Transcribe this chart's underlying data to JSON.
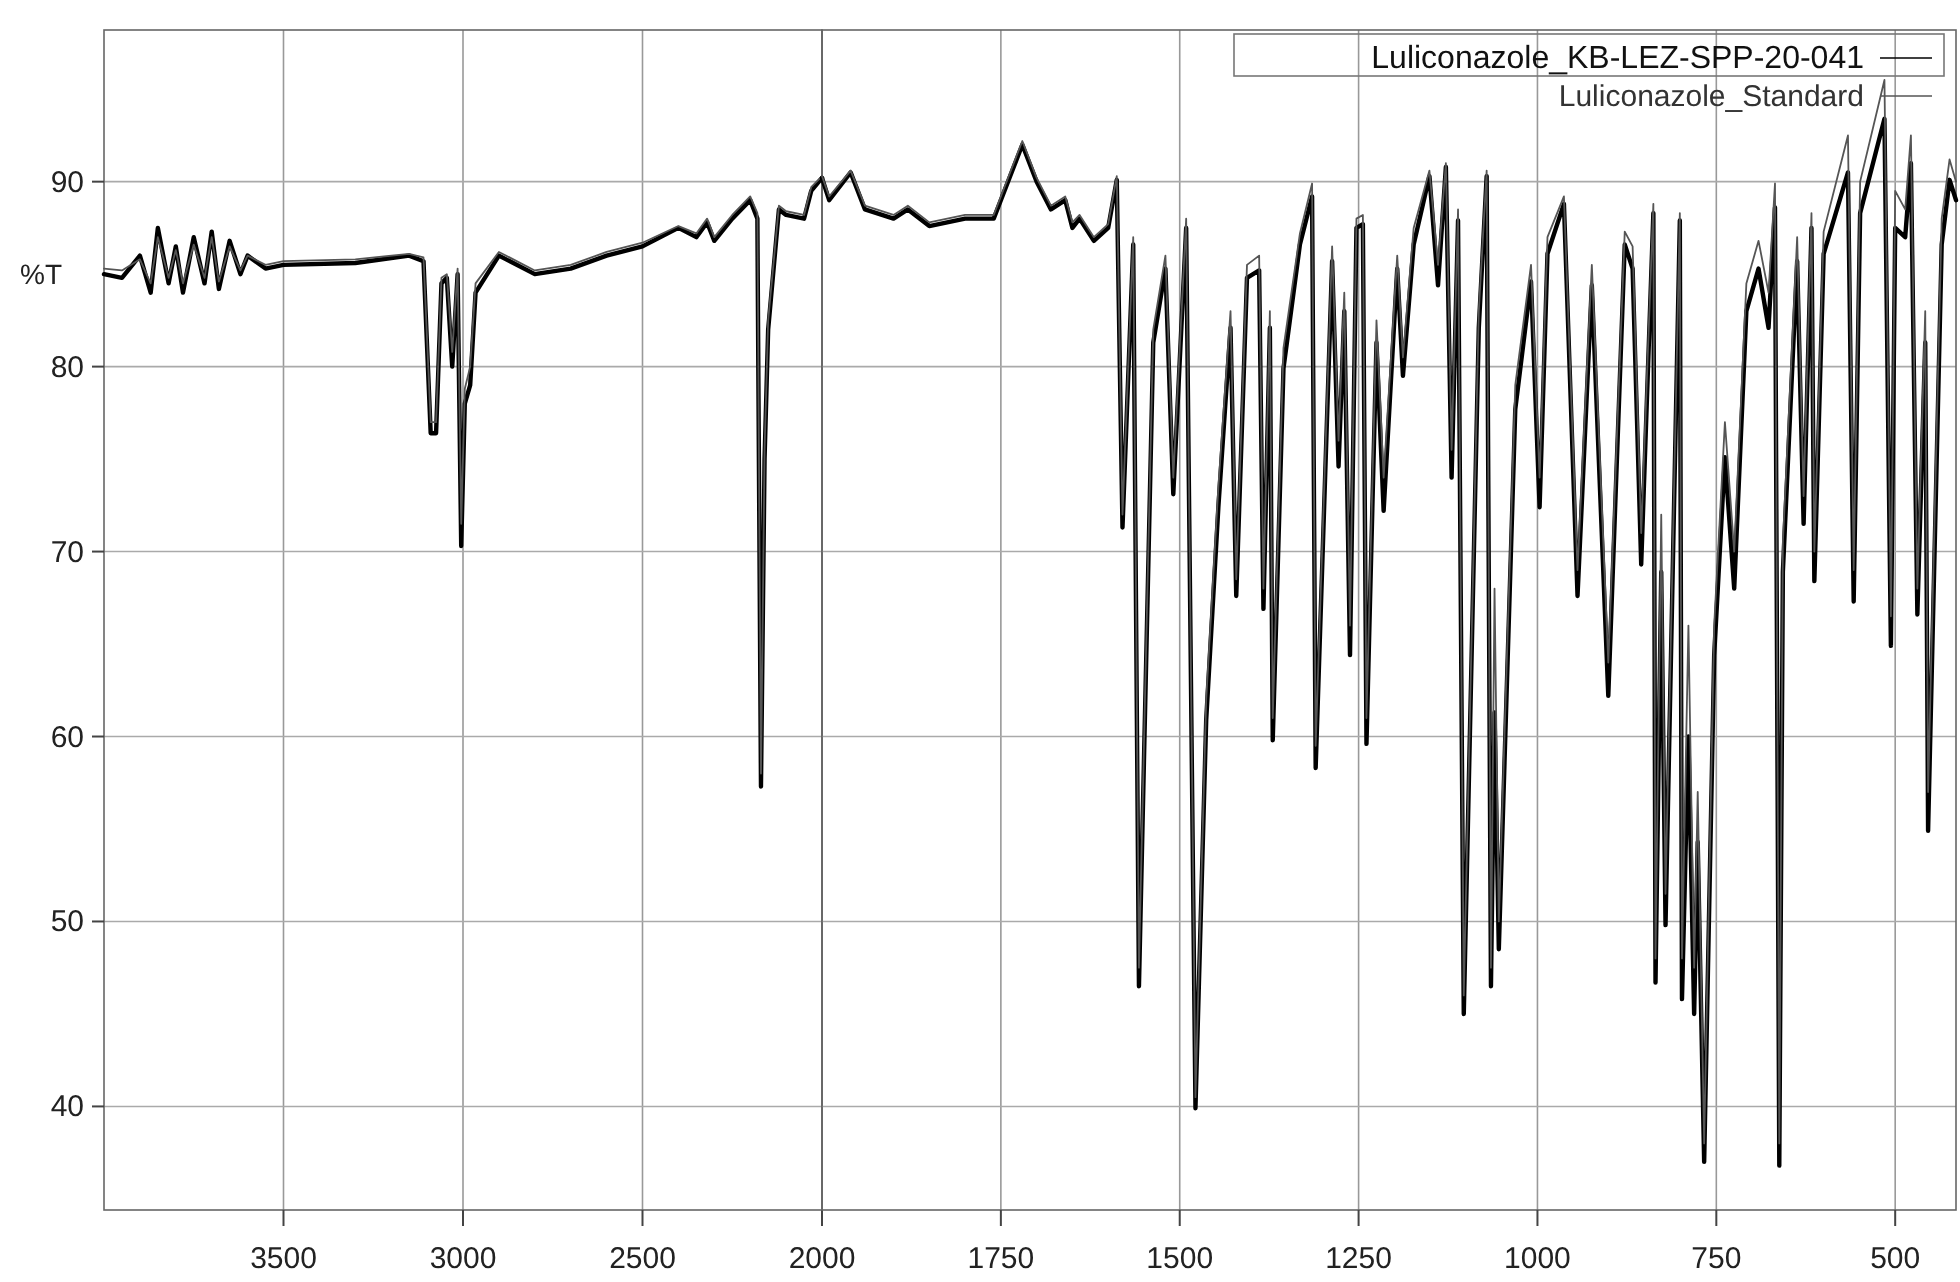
{
  "chart_data": [
    {
      "type": "line",
      "ylabel": "%T",
      "xlim": [
        4000,
        2000
      ],
      "xticks": [
        3500,
        3000,
        2500,
        2000
      ],
      "ylim": [
        34.4,
        98.2
      ],
      "yticks": [
        40,
        50,
        60,
        70,
        80,
        90
      ],
      "grid": true,
      "marker": "none",
      "line_style": "solid",
      "x": [
        4000,
        3950,
        3900,
        3870,
        3850,
        3820,
        3800,
        3780,
        3750,
        3720,
        3700,
        3680,
        3650,
        3620,
        3600,
        3550,
        3500,
        3300,
        3150,
        3110,
        3090,
        3075,
        3060,
        3045,
        3030,
        3015,
        3005,
        2995,
        2980,
        2965,
        2900,
        2800,
        2700,
        2600,
        2500,
        2400,
        2350,
        2320,
        2300,
        2250,
        2200,
        2180,
        2170,
        2160,
        2150,
        2120,
        2100,
        2050,
        2030,
        2000
      ],
      "series": [
        {
          "color": "#000000",
          "values": [
            85,
            84.8,
            86,
            84,
            87.5,
            84.5,
            86.5,
            84,
            87,
            84.5,
            87.3,
            84.2,
            86.8,
            85,
            86,
            85.3,
            85.5,
            85.6,
            86,
            85.7,
            76.4,
            76.4,
            84.5,
            84.8,
            80,
            85,
            70.3,
            78,
            79,
            84,
            86,
            85,
            85.3,
            86,
            86.5,
            87.5,
            87,
            87.8,
            86.8,
            88,
            89,
            88,
            57.3,
            75,
            82,
            88.5,
            88.2,
            88,
            89.5,
            90.2
          ]
        },
        {
          "color": "#555555",
          "values": [
            85.3,
            85.2,
            85.8,
            84.5,
            87,
            84.8,
            86.3,
            84.5,
            86.6,
            84.8,
            87,
            84.6,
            86.5,
            85.2,
            86,
            85.5,
            85.7,
            85.8,
            86.1,
            85.9,
            77,
            77,
            84.8,
            85,
            80.8,
            85.3,
            71.5,
            78.8,
            80,
            84.5,
            86.2,
            85.2,
            85.5,
            86.2,
            86.7,
            87.6,
            87.2,
            88,
            87,
            88.2,
            89.2,
            88.3,
            58,
            75.5,
            82.5,
            88.7,
            88.4,
            88.2,
            89.7,
            90.3
          ]
        }
      ]
    },
    {
      "type": "line",
      "xlim": [
        2000,
        415
      ],
      "xticks": [
        1750,
        1500,
        1250,
        1000,
        750,
        500
      ],
      "ylim": [
        34.4,
        98.2
      ],
      "yticks": [
        40,
        50,
        60,
        70,
        80,
        90
      ],
      "tick_labels": "x",
      "grid": true,
      "legend": "top right",
      "marker": "none",
      "line_style": "solid",
      "x": [
        2000,
        1990,
        1960,
        1940,
        1900,
        1880,
        1850,
        1800,
        1760,
        1740,
        1720,
        1700,
        1680,
        1660,
        1650,
        1640,
        1620,
        1600,
        1588,
        1580,
        1565,
        1557,
        1537,
        1520,
        1509,
        1491,
        1478,
        1463,
        1446,
        1429,
        1421,
        1406,
        1389,
        1383,
        1374,
        1370,
        1355,
        1332,
        1315,
        1310,
        1287,
        1278,
        1270,
        1262,
        1253,
        1244,
        1239,
        1225,
        1215,
        1196,
        1188,
        1173,
        1151,
        1139,
        1128,
        1120,
        1111,
        1103,
        1082,
        1071,
        1065,
        1060,
        1054,
        1031,
        1009,
        997,
        986,
        963,
        944,
        924,
        901,
        878,
        867,
        855,
        838,
        835,
        827,
        821,
        801,
        798,
        789,
        781,
        776,
        767,
        753,
        738,
        725,
        708,
        691,
        677,
        668,
        662,
        657,
        637,
        628,
        617,
        613,
        600,
        566,
        558,
        549,
        515,
        506,
        500,
        486,
        478,
        469,
        458,
        454,
        435,
        424,
        415
      ],
      "series": [
        {
          "name": "Luliconazole_KB-LEZ-SPP-20-041",
          "color": "#000000",
          "values": [
            90.2,
            89,
            90.5,
            88.5,
            88,
            88.5,
            87.6,
            88,
            88,
            90,
            92,
            90,
            88.5,
            89,
            87.5,
            88,
            86.8,
            87.5,
            90.1,
            71.3,
            86.6,
            46.5,
            81.3,
            85.3,
            73.1,
            87.5,
            39.9,
            60.9,
            72.4,
            82.1,
            67.6,
            84.8,
            85.2,
            66.9,
            82.1,
            59.8,
            79.9,
            86.6,
            89.2,
            58.3,
            85.7,
            74.6,
            83,
            64.4,
            87.5,
            87.7,
            59.6,
            81.3,
            72.2,
            85.3,
            79.5,
            86.6,
            90.3,
            84.4,
            90.8,
            74,
            87.9,
            45,
            82.1,
            90.3,
            46.5,
            61.3,
            48.5,
            77.7,
            84.6,
            72.4,
            86.1,
            88.8,
            67.6,
            84.4,
            62.2,
            86.6,
            85.3,
            69.3,
            88.3,
            46.7,
            68.9,
            49.8,
            87.9,
            45.8,
            60,
            45,
            54.3,
            37,
            64.4,
            75.1,
            68,
            83,
            85.3,
            82.1,
            88.6,
            36.8,
            68.9,
            85.7,
            71.5,
            87.5,
            68.4,
            86.1,
            90.5,
            67.3,
            88.3,
            93.4,
            64.9,
            87.5,
            87,
            91,
            66.6,
            81.3,
            54.9,
            86.6,
            90.1,
            89
          ]
        },
        {
          "name": "Luliconazole_Standard",
          "color": "#555555",
          "values": [
            90.3,
            89.2,
            90.6,
            88.7,
            88.2,
            88.7,
            87.8,
            88.2,
            88.2,
            90.2,
            92.2,
            90.2,
            88.7,
            89.2,
            87.8,
            88.2,
            87,
            87.7,
            90.3,
            72,
            87,
            47.5,
            82,
            86,
            74,
            88,
            40.5,
            62,
            73.5,
            83,
            68.5,
            85.5,
            86,
            68,
            83,
            61,
            81,
            87.2,
            89.9,
            59.5,
            86.5,
            76,
            84,
            66,
            88,
            88.2,
            61,
            82.5,
            74,
            86,
            80.5,
            87.5,
            90.6,
            85.5,
            91,
            75.5,
            88.5,
            46,
            83,
            90.6,
            47.5,
            68,
            50,
            79,
            85.5,
            74,
            87,
            89.2,
            69,
            85.5,
            64,
            87.3,
            86.5,
            71,
            88.8,
            48,
            72,
            51.5,
            88.3,
            48,
            66,
            47.5,
            57,
            38,
            66,
            77,
            70,
            84.5,
            86.8,
            84,
            89.9,
            38,
            70.5,
            87,
            73,
            88.3,
            70,
            87.3,
            92.5,
            69,
            90,
            95.5,
            66.5,
            89.5,
            88.5,
            92.5,
            68,
            83,
            57,
            88,
            91.2,
            90
          ]
        }
      ]
    }
  ]
}
